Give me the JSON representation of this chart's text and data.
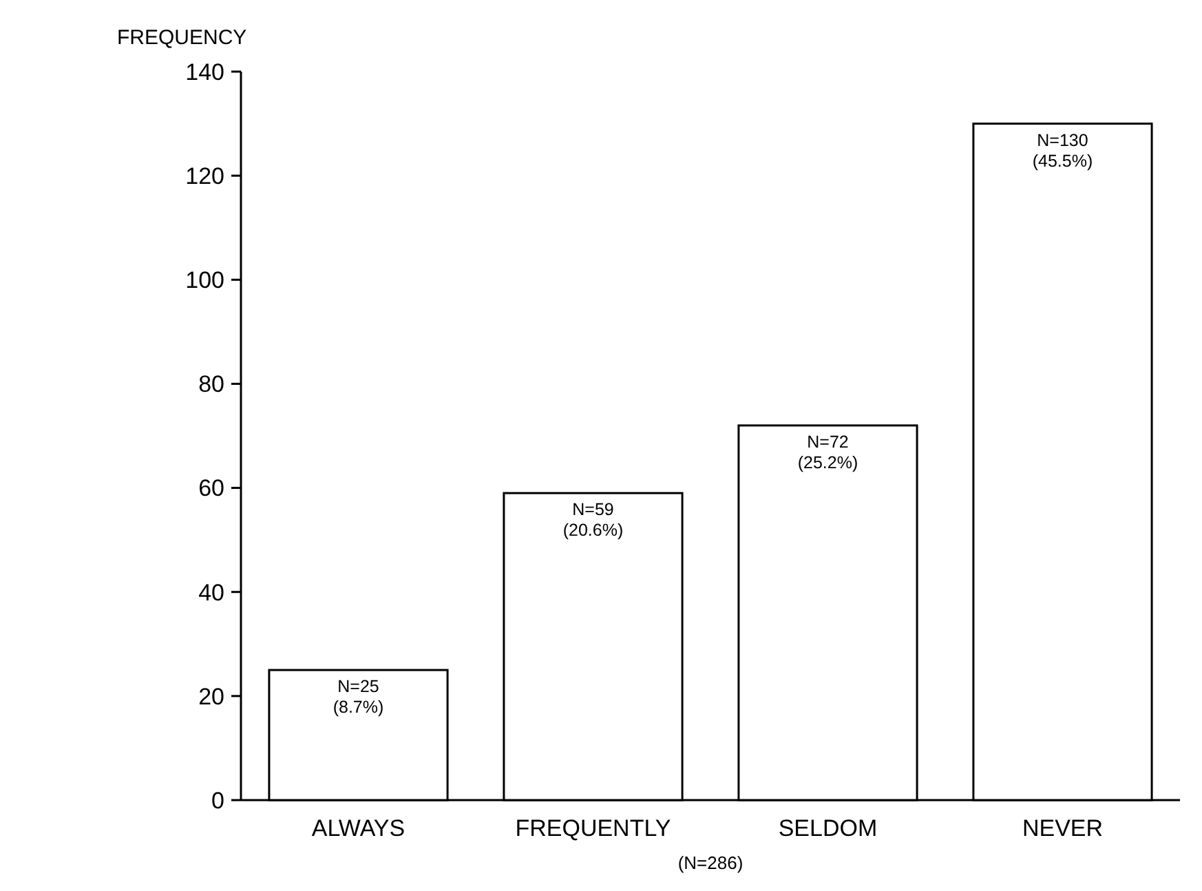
{
  "chart_data": {
    "type": "bar",
    "ylabel": "FREQUENCY",
    "categories": [
      "ALWAYS",
      "FREQUENTLY",
      "SELDOM",
      "NEVER"
    ],
    "values": [
      25,
      59,
      72,
      130
    ],
    "value_labels": [
      "N=25\n(8.7%)",
      "N=59\n(20.6%)",
      "N=72\n(25.2%)",
      "N=130\n(45.5%)"
    ],
    "color": "#ffffff",
    "ylim": [
      0,
      140
    ],
    "yticks": [
      0,
      20,
      40,
      60,
      80,
      100,
      120,
      140
    ],
    "annotations": [
      "(N=286)"
    ],
    "grid": false
  }
}
